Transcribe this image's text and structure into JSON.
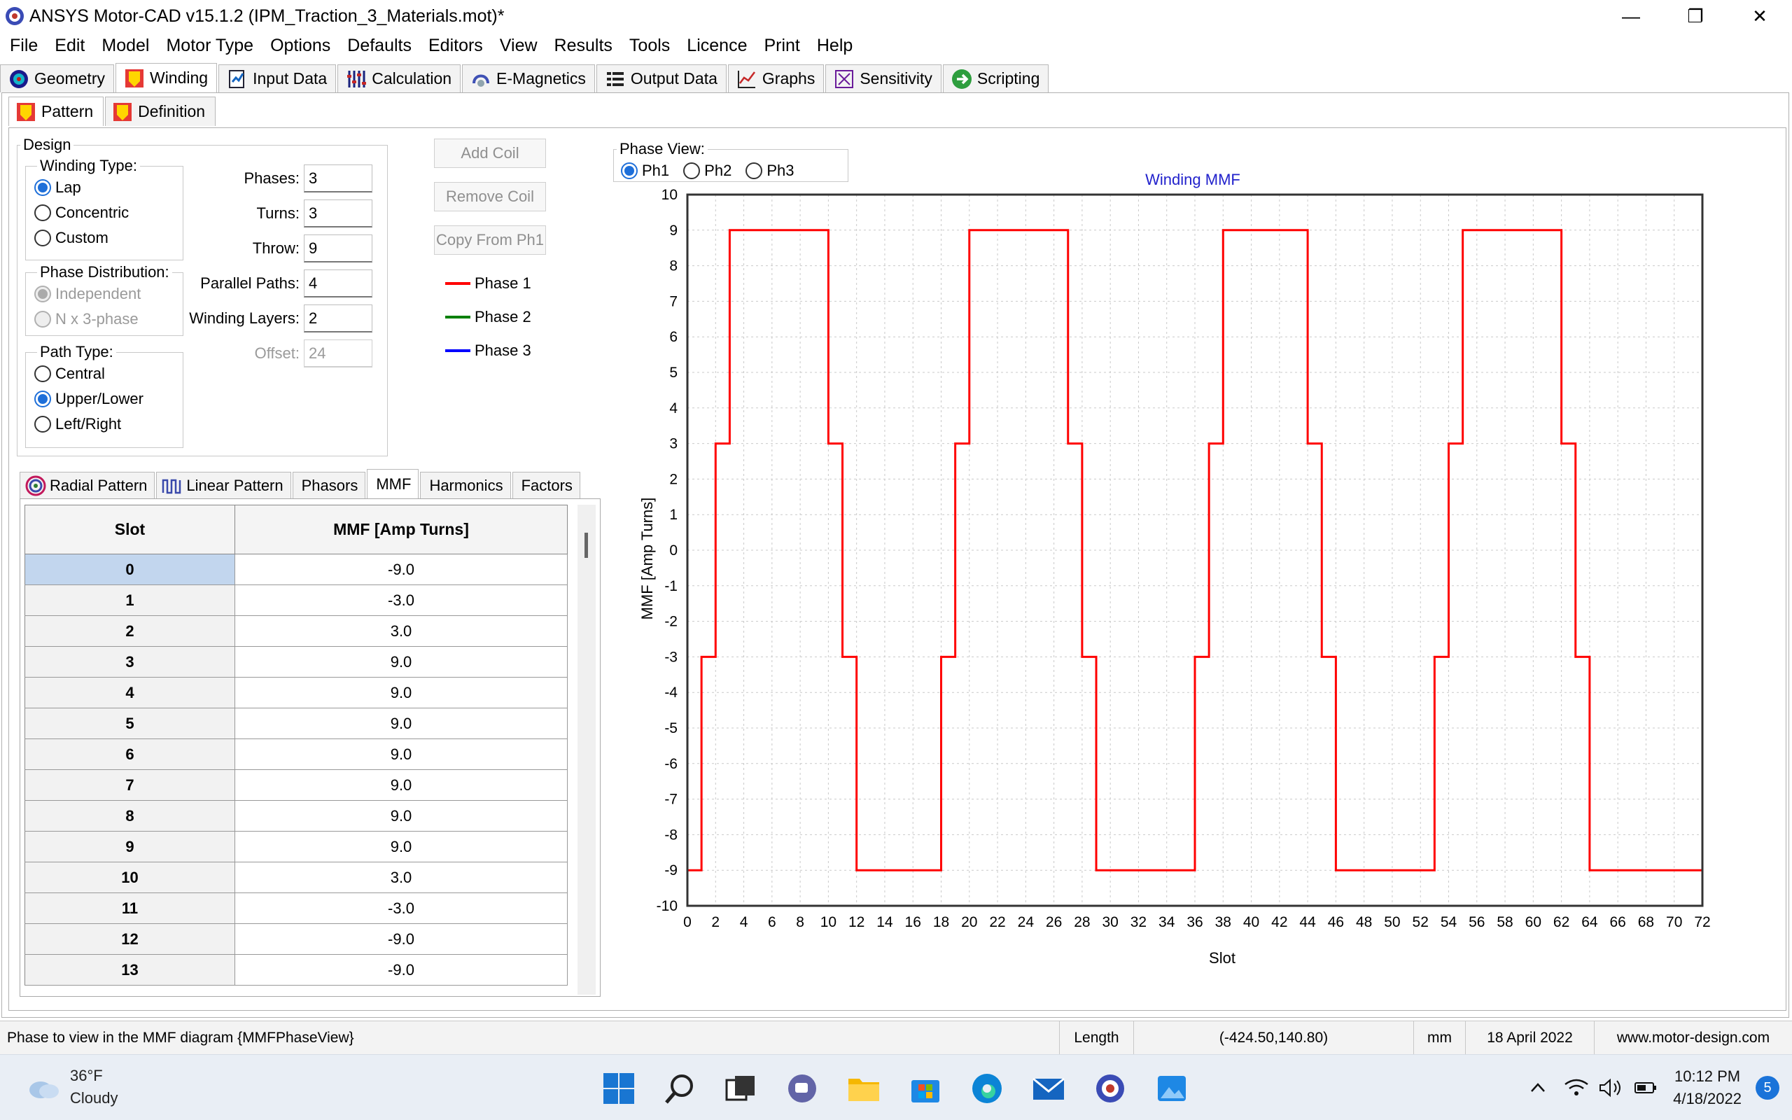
{
  "window": {
    "title": "ANSYS Motor-CAD v15.1.2 (IPM_Traction_3_Materials.mot)*",
    "controls": [
      "—",
      "❐",
      "✕"
    ]
  },
  "menu": [
    "File",
    "Edit",
    "Model",
    "Motor Type",
    "Options",
    "Defaults",
    "Editors",
    "View",
    "Results",
    "Tools",
    "Licence",
    "Print",
    "Help"
  ],
  "main_tabs": [
    {
      "label": "Geometry",
      "icon": "geometry-icon"
    },
    {
      "label": "Winding",
      "icon": "winding-icon",
      "active": true
    },
    {
      "label": "Input Data",
      "icon": "input-data-icon"
    },
    {
      "label": "Calculation",
      "icon": "calculation-icon"
    },
    {
      "label": "E-Magnetics",
      "icon": "emagnetics-icon"
    },
    {
      "label": "Output Data",
      "icon": "output-data-icon"
    },
    {
      "label": "Graphs",
      "icon": "graphs-icon"
    },
    {
      "label": "Sensitivity",
      "icon": "sensitivity-icon"
    },
    {
      "label": "Scripting",
      "icon": "scripting-icon"
    }
  ],
  "sub_tabs": [
    {
      "label": "Pattern",
      "active": true
    },
    {
      "label": "Definition"
    }
  ],
  "design": {
    "legend": "Design",
    "winding_type": {
      "legend": "Winding Type:",
      "options": [
        "Lap",
        "Concentric",
        "Custom"
      ],
      "selected": "Lap"
    },
    "phase_distribution": {
      "legend": "Phase Distribution:",
      "options": [
        "Independent",
        "N x 3-phase"
      ],
      "selected": "Independent"
    },
    "path_type": {
      "legend": "Path Type:",
      "options": [
        "Central",
        "Upper/Lower",
        "Left/Right"
      ],
      "selected": "Upper/Lower"
    },
    "params": {
      "phases": {
        "label": "Phases:",
        "value": "3"
      },
      "turns": {
        "label": "Turns:",
        "value": "3"
      },
      "throw": {
        "label": "Throw:",
        "value": "9"
      },
      "parallel_paths": {
        "label": "Parallel Paths:",
        "value": "4"
      },
      "winding_layers": {
        "label": "Winding Layers:",
        "value": "2"
      },
      "offset": {
        "label": "Offset:",
        "value": "24"
      }
    }
  },
  "coil_buttons": {
    "add": "Add Coil",
    "remove": "Remove Coil",
    "copy": "Copy From Ph1"
  },
  "phase_legend": [
    {
      "label": "Phase 1",
      "color": "#ff0000"
    },
    {
      "label": "Phase 2",
      "color": "#008000"
    },
    {
      "label": "Phase 3",
      "color": "#0000ff"
    }
  ],
  "table_tabs": [
    {
      "label": "Radial Pattern",
      "icon": "radial-pattern-icon"
    },
    {
      "label": "Linear Pattern",
      "icon": "linear-pattern-icon"
    },
    {
      "label": "Phasors"
    },
    {
      "label": "MMF",
      "active": true
    },
    {
      "label": "Harmonics"
    },
    {
      "label": "Factors"
    }
  ],
  "mmf_table": {
    "headers": [
      "Slot",
      "MMF [Amp Turns]"
    ],
    "rows": [
      [
        "0",
        "-9.0"
      ],
      [
        "1",
        "-3.0"
      ],
      [
        "2",
        "3.0"
      ],
      [
        "3",
        "9.0"
      ],
      [
        "4",
        "9.0"
      ],
      [
        "5",
        "9.0"
      ],
      [
        "6",
        "9.0"
      ],
      [
        "7",
        "9.0"
      ],
      [
        "8",
        "9.0"
      ],
      [
        "9",
        "9.0"
      ],
      [
        "10",
        "3.0"
      ],
      [
        "11",
        "-3.0"
      ],
      [
        "12",
        "-9.0"
      ],
      [
        "13",
        "-9.0"
      ]
    ],
    "selected_row": 0
  },
  "phase_view": {
    "legend": "Phase View:",
    "options": [
      "Ph1",
      "Ph2",
      "Ph3"
    ],
    "selected": "Ph1"
  },
  "chart_data": {
    "type": "line",
    "title": "Winding MMF",
    "xlabel": "Slot",
    "ylabel": "MMF [Amp Turns]",
    "xlim": [
      0,
      72
    ],
    "ylim": [
      -10,
      10
    ],
    "xticks": [
      0,
      2,
      4,
      6,
      8,
      10,
      12,
      14,
      16,
      18,
      20,
      22,
      24,
      26,
      28,
      30,
      32,
      34,
      36,
      38,
      40,
      42,
      44,
      46,
      48,
      50,
      52,
      54,
      56,
      58,
      60,
      62,
      64,
      66,
      68,
      70,
      72
    ],
    "yticks": [
      10,
      9,
      8,
      7,
      6,
      5,
      4,
      3,
      2,
      1,
      0,
      -1,
      -2,
      -3,
      -4,
      -5,
      -6,
      -7,
      -8,
      -9,
      -10
    ],
    "grid": true,
    "step": true,
    "series": [
      {
        "color": "#ff0000",
        "x": [
          0,
          1,
          2,
          3,
          4,
          5,
          6,
          7,
          8,
          9,
          10,
          11,
          12,
          13,
          14,
          15,
          16,
          17,
          18,
          19,
          20,
          21,
          22,
          23,
          24,
          25,
          26,
          27,
          28,
          29,
          30,
          31,
          32,
          33,
          34,
          35,
          36,
          37,
          38,
          39,
          40,
          41,
          42,
          43,
          44,
          45,
          46,
          47,
          48,
          49,
          50,
          51,
          52,
          53,
          54,
          55,
          56,
          57,
          58,
          59,
          60,
          61,
          62,
          63,
          64,
          65,
          66,
          67,
          68,
          69,
          70,
          71
        ],
        "y": [
          -9,
          -3,
          3,
          9,
          9,
          9,
          9,
          9,
          9,
          9,
          3,
          -3,
          -9,
          -9,
          -9,
          -9,
          -9,
          -9,
          -3,
          3,
          9,
          9,
          9,
          9,
          9,
          9,
          9,
          3,
          -3,
          -9,
          -9,
          -9,
          -9,
          -9,
          -9,
          -9,
          -3,
          3,
          9,
          9,
          9,
          9,
          9,
          9,
          3,
          -3,
          -9,
          -9,
          -9,
          -9,
          -9,
          -9,
          -9,
          -3,
          3,
          9,
          9,
          9,
          9,
          9,
          9,
          9,
          3,
          -3,
          -9,
          -9,
          -9,
          -9,
          -9,
          -9,
          -9,
          -9
        ]
      }
    ]
  },
  "status_bar": {
    "hint": "Phase to view in the MMF diagram {MMFPhaseView}",
    "length_label": "Length",
    "coords": "(-424.50,140.80)",
    "unit": "mm",
    "date": "18 April 2022",
    "website": "www.motor-design.com"
  },
  "taskbar": {
    "weather_temp": "36°F",
    "weather_desc": "Cloudy",
    "time": "10:12 PM",
    "date": "4/18/2022",
    "notification_count": "5"
  }
}
